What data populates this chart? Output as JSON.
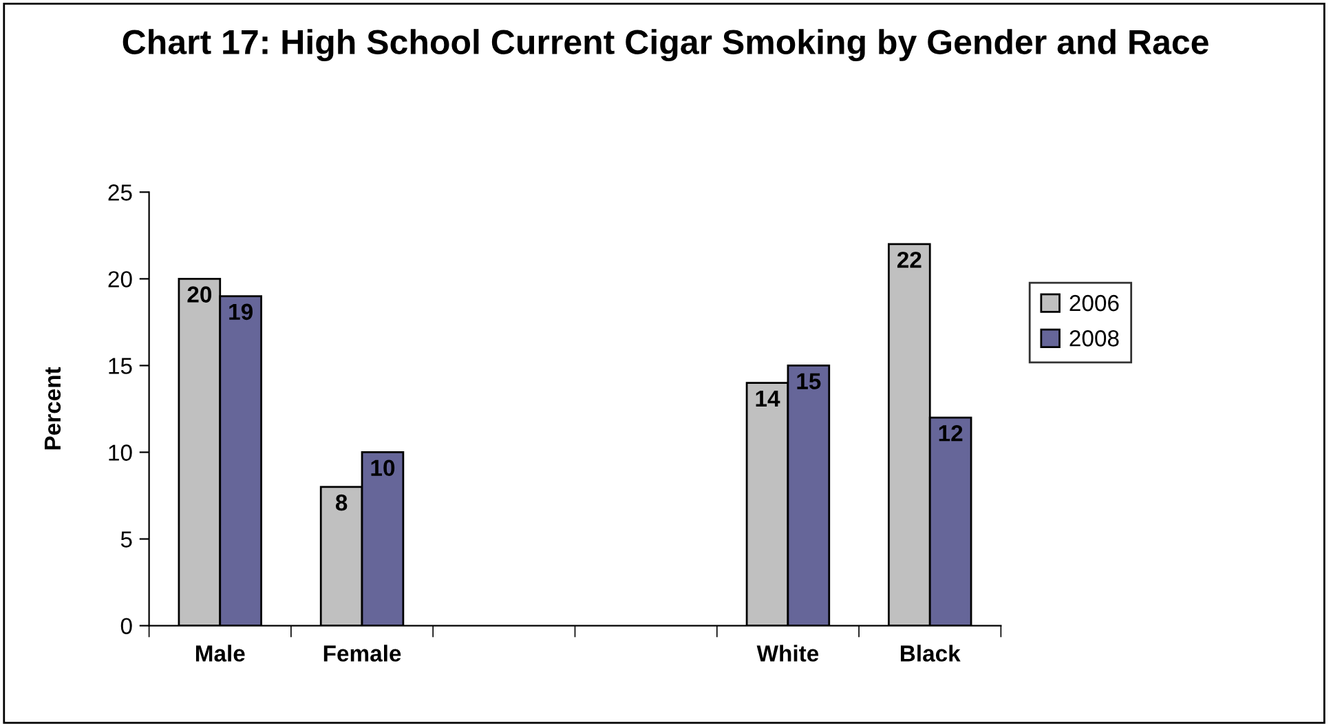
{
  "chart_data": {
    "type": "bar",
    "title": "Chart 17: High School Current Cigar Smoking by Gender and Race",
    "ylabel": "Percent",
    "categories": [
      "Male",
      "Female",
      null,
      null,
      "White",
      "Black"
    ],
    "series": [
      {
        "name": "2006",
        "color": "#c0c0c0",
        "values": [
          20,
          8,
          null,
          null,
          14,
          22
        ]
      },
      {
        "name": "2008",
        "color": "#666699",
        "values": [
          19,
          10,
          null,
          null,
          15,
          12
        ]
      }
    ],
    "ylim": [
      0,
      25
    ],
    "yticks": [
      0,
      5,
      10,
      15,
      20,
      25
    ],
    "grid": false,
    "legend": "right",
    "data_labels": true
  }
}
